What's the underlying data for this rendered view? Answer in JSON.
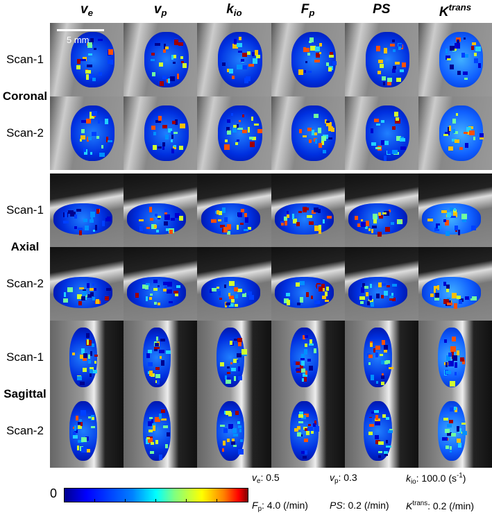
{
  "scale_bar": "5 mm",
  "columns": [
    [
      {
        "text": "v",
        "style": "main"
      },
      {
        "text": "e",
        "style": "sub"
      }
    ],
    [
      {
        "text": "v",
        "style": "main"
      },
      {
        "text": "p",
        "style": "sub"
      }
    ],
    [
      {
        "text": "k",
        "style": "main"
      },
      {
        "text": "io",
        "style": "sub"
      }
    ],
    [
      {
        "text": "F",
        "style": "main"
      },
      {
        "text": "p",
        "style": "sub"
      }
    ],
    [
      {
        "text": "PS",
        "style": "main"
      }
    ],
    [
      {
        "text": "K",
        "style": "main"
      },
      {
        "text": "trans",
        "style": "sup"
      }
    ]
  ],
  "groups": [
    {
      "label": "Coronal",
      "rows": [
        "Scan-1",
        "Scan-2"
      ]
    },
    {
      "label": "Axial",
      "rows": [
        "Scan-1",
        "Scan-2"
      ]
    },
    {
      "label": "Sagittal",
      "rows": [
        "Scan-1",
        "Scan-2"
      ]
    }
  ],
  "colorbar": {
    "min_label": "0"
  },
  "legend": [
    [
      {
        "text": "v",
        "style": "ital"
      },
      {
        "text": "e",
        "style": "sub"
      },
      {
        "text": ": 0.5",
        "style": "plain"
      }
    ],
    [
      {
        "text": "v",
        "style": "ital"
      },
      {
        "text": "p",
        "style": "sub"
      },
      {
        "text": ": 0.3",
        "style": "plain"
      }
    ],
    [
      {
        "text": "k",
        "style": "ital"
      },
      {
        "text": "io",
        "style": "sub"
      },
      {
        "text": ": 100.0 (s",
        "style": "plain"
      },
      {
        "text": "-1",
        "style": "sup"
      },
      {
        "text": ")",
        "style": "plain"
      }
    ],
    [
      {
        "text": "F",
        "style": "ital"
      },
      {
        "text": "p",
        "style": "sub"
      },
      {
        "text": ": 4.0 (/min)",
        "style": "plain"
      }
    ],
    [
      {
        "text": "PS",
        "style": "ital"
      },
      {
        "text": ": 0.2 (/min)",
        "style": "plain"
      }
    ],
    [
      {
        "text": "K",
        "style": "ital"
      },
      {
        "text": "trans",
        "style": "sup"
      },
      {
        "text": ": 0.2 (/min)",
        "style": "plain"
      }
    ]
  ]
}
